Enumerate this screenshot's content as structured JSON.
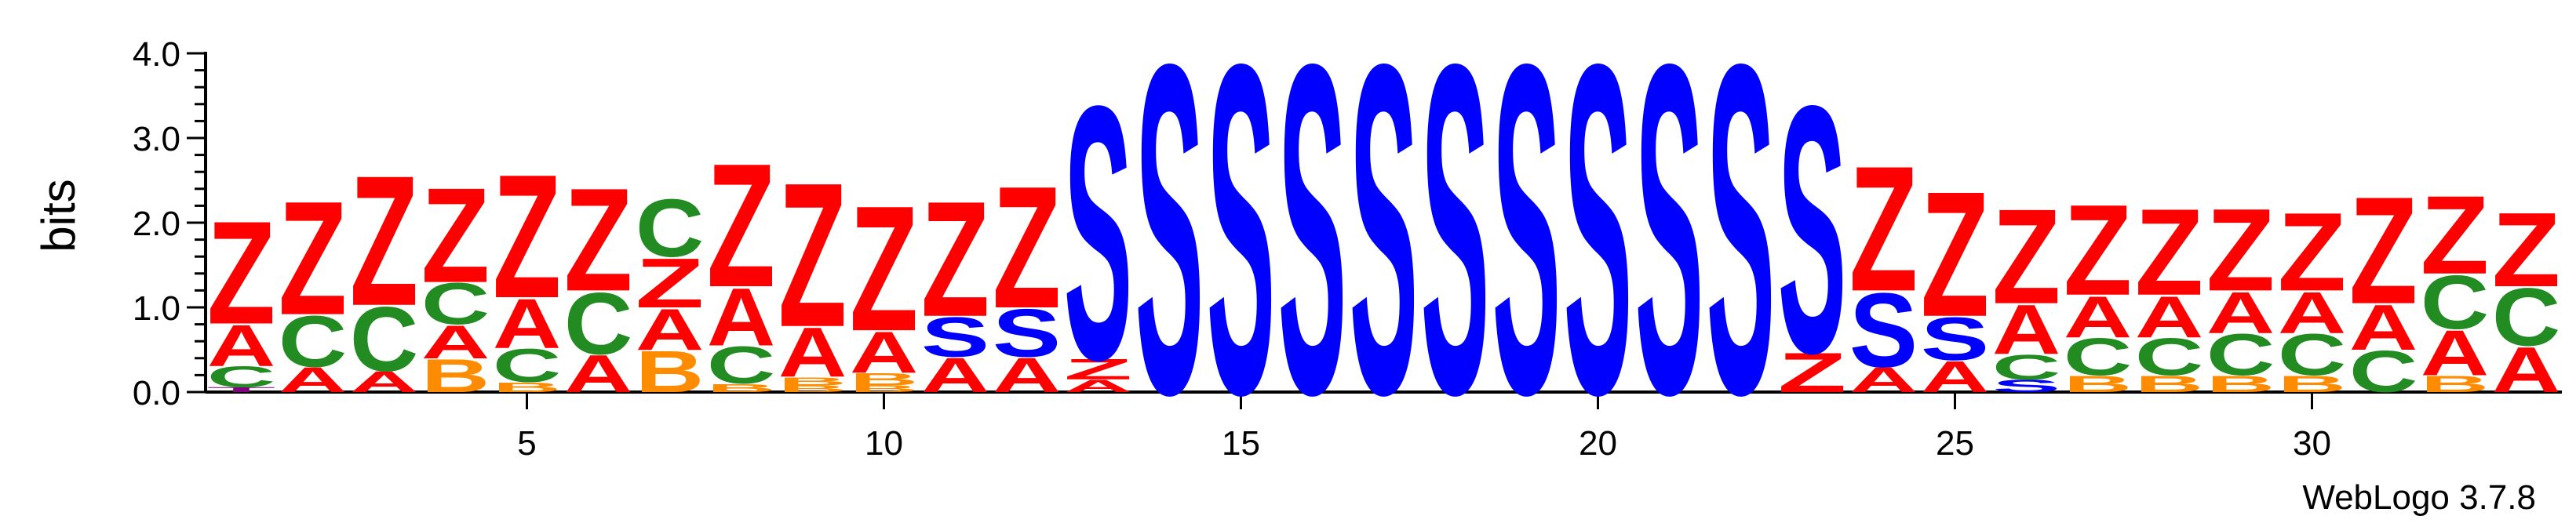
{
  "chart_data": {
    "type": "sequence_logo",
    "ylabel": "bits",
    "ylim": [
      0,
      4
    ],
    "y_ticks": [
      "0.0",
      "1.0",
      "2.0",
      "3.0",
      "4.0"
    ],
    "x_ticks": [
      5,
      10,
      15,
      20,
      25,
      30
    ],
    "x_range": [
      1,
      33
    ],
    "credit": "WebLogo 3.7.8",
    "colors": {
      "Z": "#ff0000",
      "A": "#ff0000",
      "S": "#0000ff",
      "C": "#228b22",
      "B": "#ff8c00",
      "T": "#800080"
    },
    "positions": [
      {
        "pos": 1,
        "stack": [
          [
            "T",
            0.06
          ],
          [
            "C",
            0.25
          ],
          [
            "A",
            0.5
          ],
          [
            "Z",
            1.25
          ]
        ]
      },
      {
        "pos": 2,
        "stack": [
          [
            "A",
            0.3
          ],
          [
            "C",
            0.62
          ],
          [
            "Z",
            1.38
          ]
        ]
      },
      {
        "pos": 3,
        "stack": [
          [
            "A",
            0.25
          ],
          [
            "C",
            0.78
          ],
          [
            "Z",
            1.58
          ]
        ]
      },
      {
        "pos": 4,
        "stack": [
          [
            "B",
            0.4
          ],
          [
            "A",
            0.4
          ],
          [
            "C",
            0.5
          ],
          [
            "Z",
            1.15
          ]
        ]
      },
      {
        "pos": 5,
        "stack": [
          [
            "B",
            0.12
          ],
          [
            "C",
            0.4
          ],
          [
            "A",
            0.6
          ],
          [
            "Z",
            1.5
          ]
        ]
      },
      {
        "pos": 6,
        "stack": [
          [
            "A",
            0.45
          ],
          [
            "C",
            0.75
          ],
          [
            "Z",
            1.25
          ]
        ]
      },
      {
        "pos": 7,
        "stack": [
          [
            "B",
            0.5
          ],
          [
            "A",
            0.5
          ],
          [
            "Z",
            0.6
          ],
          [
            "C",
            0.7
          ]
        ]
      },
      {
        "pos": 8,
        "stack": [
          [
            "B",
            0.1
          ],
          [
            "C",
            0.45
          ],
          [
            "A",
            0.7
          ],
          [
            "Z",
            1.5
          ]
        ]
      },
      {
        "pos": 9,
        "stack": [
          [
            "B",
            0.08
          ],
          [
            "B",
            0.1
          ],
          [
            "A",
            0.6
          ],
          [
            "Z",
            1.75
          ]
        ]
      },
      {
        "pos": 10,
        "stack": [
          [
            "B",
            0.08
          ],
          [
            "B",
            0.15
          ],
          [
            "A",
            0.5
          ],
          [
            "Z",
            1.52
          ]
        ]
      },
      {
        "pos": 11,
        "stack": [
          [
            "A",
            0.42
          ],
          [
            "S",
            0.48
          ],
          [
            "Z",
            1.4
          ]
        ]
      },
      {
        "pos": 12,
        "stack": [
          [
            "A",
            0.42
          ],
          [
            "S",
            0.58
          ],
          [
            "Z",
            1.48
          ]
        ]
      },
      {
        "pos": 13,
        "stack": [
          [
            "A",
            0.15
          ],
          [
            "Z",
            0.25
          ],
          [
            "S",
            3.08
          ]
        ]
      },
      {
        "pos": 14,
        "stack": [
          [
            "S",
            4.0
          ]
        ]
      },
      {
        "pos": 15,
        "stack": [
          [
            "S",
            4.0
          ]
        ]
      },
      {
        "pos": 16,
        "stack": [
          [
            "S",
            4.0
          ]
        ]
      },
      {
        "pos": 17,
        "stack": [
          [
            "S",
            4.0
          ]
        ]
      },
      {
        "pos": 18,
        "stack": [
          [
            "S",
            4.0
          ]
        ]
      },
      {
        "pos": 19,
        "stack": [
          [
            "S",
            4.0
          ]
        ]
      },
      {
        "pos": 20,
        "stack": [
          [
            "S",
            4.0
          ]
        ]
      },
      {
        "pos": 21,
        "stack": [
          [
            "S",
            4.0
          ]
        ]
      },
      {
        "pos": 22,
        "stack": [
          [
            "S",
            4.0
          ]
        ]
      },
      {
        "pos": 23,
        "stack": [
          [
            "Z",
            0.48
          ],
          [
            "S",
            3.0
          ]
        ]
      },
      {
        "pos": 24,
        "stack": [
          [
            "A",
            0.3
          ],
          [
            "S",
            0.9
          ],
          [
            "Z",
            1.52
          ]
        ]
      },
      {
        "pos": 25,
        "stack": [
          [
            "A",
            0.38
          ],
          [
            "S",
            0.52
          ],
          [
            "Z",
            1.52
          ]
        ]
      },
      {
        "pos": 26,
        "stack": [
          [
            "S",
            0.15
          ],
          [
            "C",
            0.3
          ],
          [
            "A",
            0.6
          ],
          [
            "Z",
            1.15
          ]
        ]
      },
      {
        "pos": 27,
        "stack": [
          [
            "B",
            0.2
          ],
          [
            "C",
            0.45
          ],
          [
            "A",
            0.5
          ],
          [
            "Z",
            1.1
          ]
        ]
      },
      {
        "pos": 28,
        "stack": [
          [
            "B",
            0.2
          ],
          [
            "C",
            0.45
          ],
          [
            "A",
            0.5
          ],
          [
            "Z",
            1.05
          ]
        ]
      },
      {
        "pos": 29,
        "stack": [
          [
            "B",
            0.2
          ],
          [
            "C",
            0.5
          ],
          [
            "A",
            0.5
          ],
          [
            "Z",
            1.0
          ]
        ]
      },
      {
        "pos": 30,
        "stack": [
          [
            "B",
            0.2
          ],
          [
            "C",
            0.5
          ],
          [
            "A",
            0.5
          ],
          [
            "Z",
            0.95
          ]
        ]
      },
      {
        "pos": 31,
        "stack": [
          [
            "C",
            0.5
          ],
          [
            "A",
            0.55
          ],
          [
            "Z",
            1.3
          ]
        ]
      },
      {
        "pos": 32,
        "stack": [
          [
            "B",
            0.2
          ],
          [
            "A",
            0.55
          ],
          [
            "C",
            0.65
          ],
          [
            "Z",
            0.95
          ]
        ]
      },
      {
        "pos": 33,
        "stack": [
          [
            "A",
            0.55
          ],
          [
            "C",
            0.7
          ],
          [
            "Z",
            0.9
          ]
        ]
      }
    ]
  }
}
